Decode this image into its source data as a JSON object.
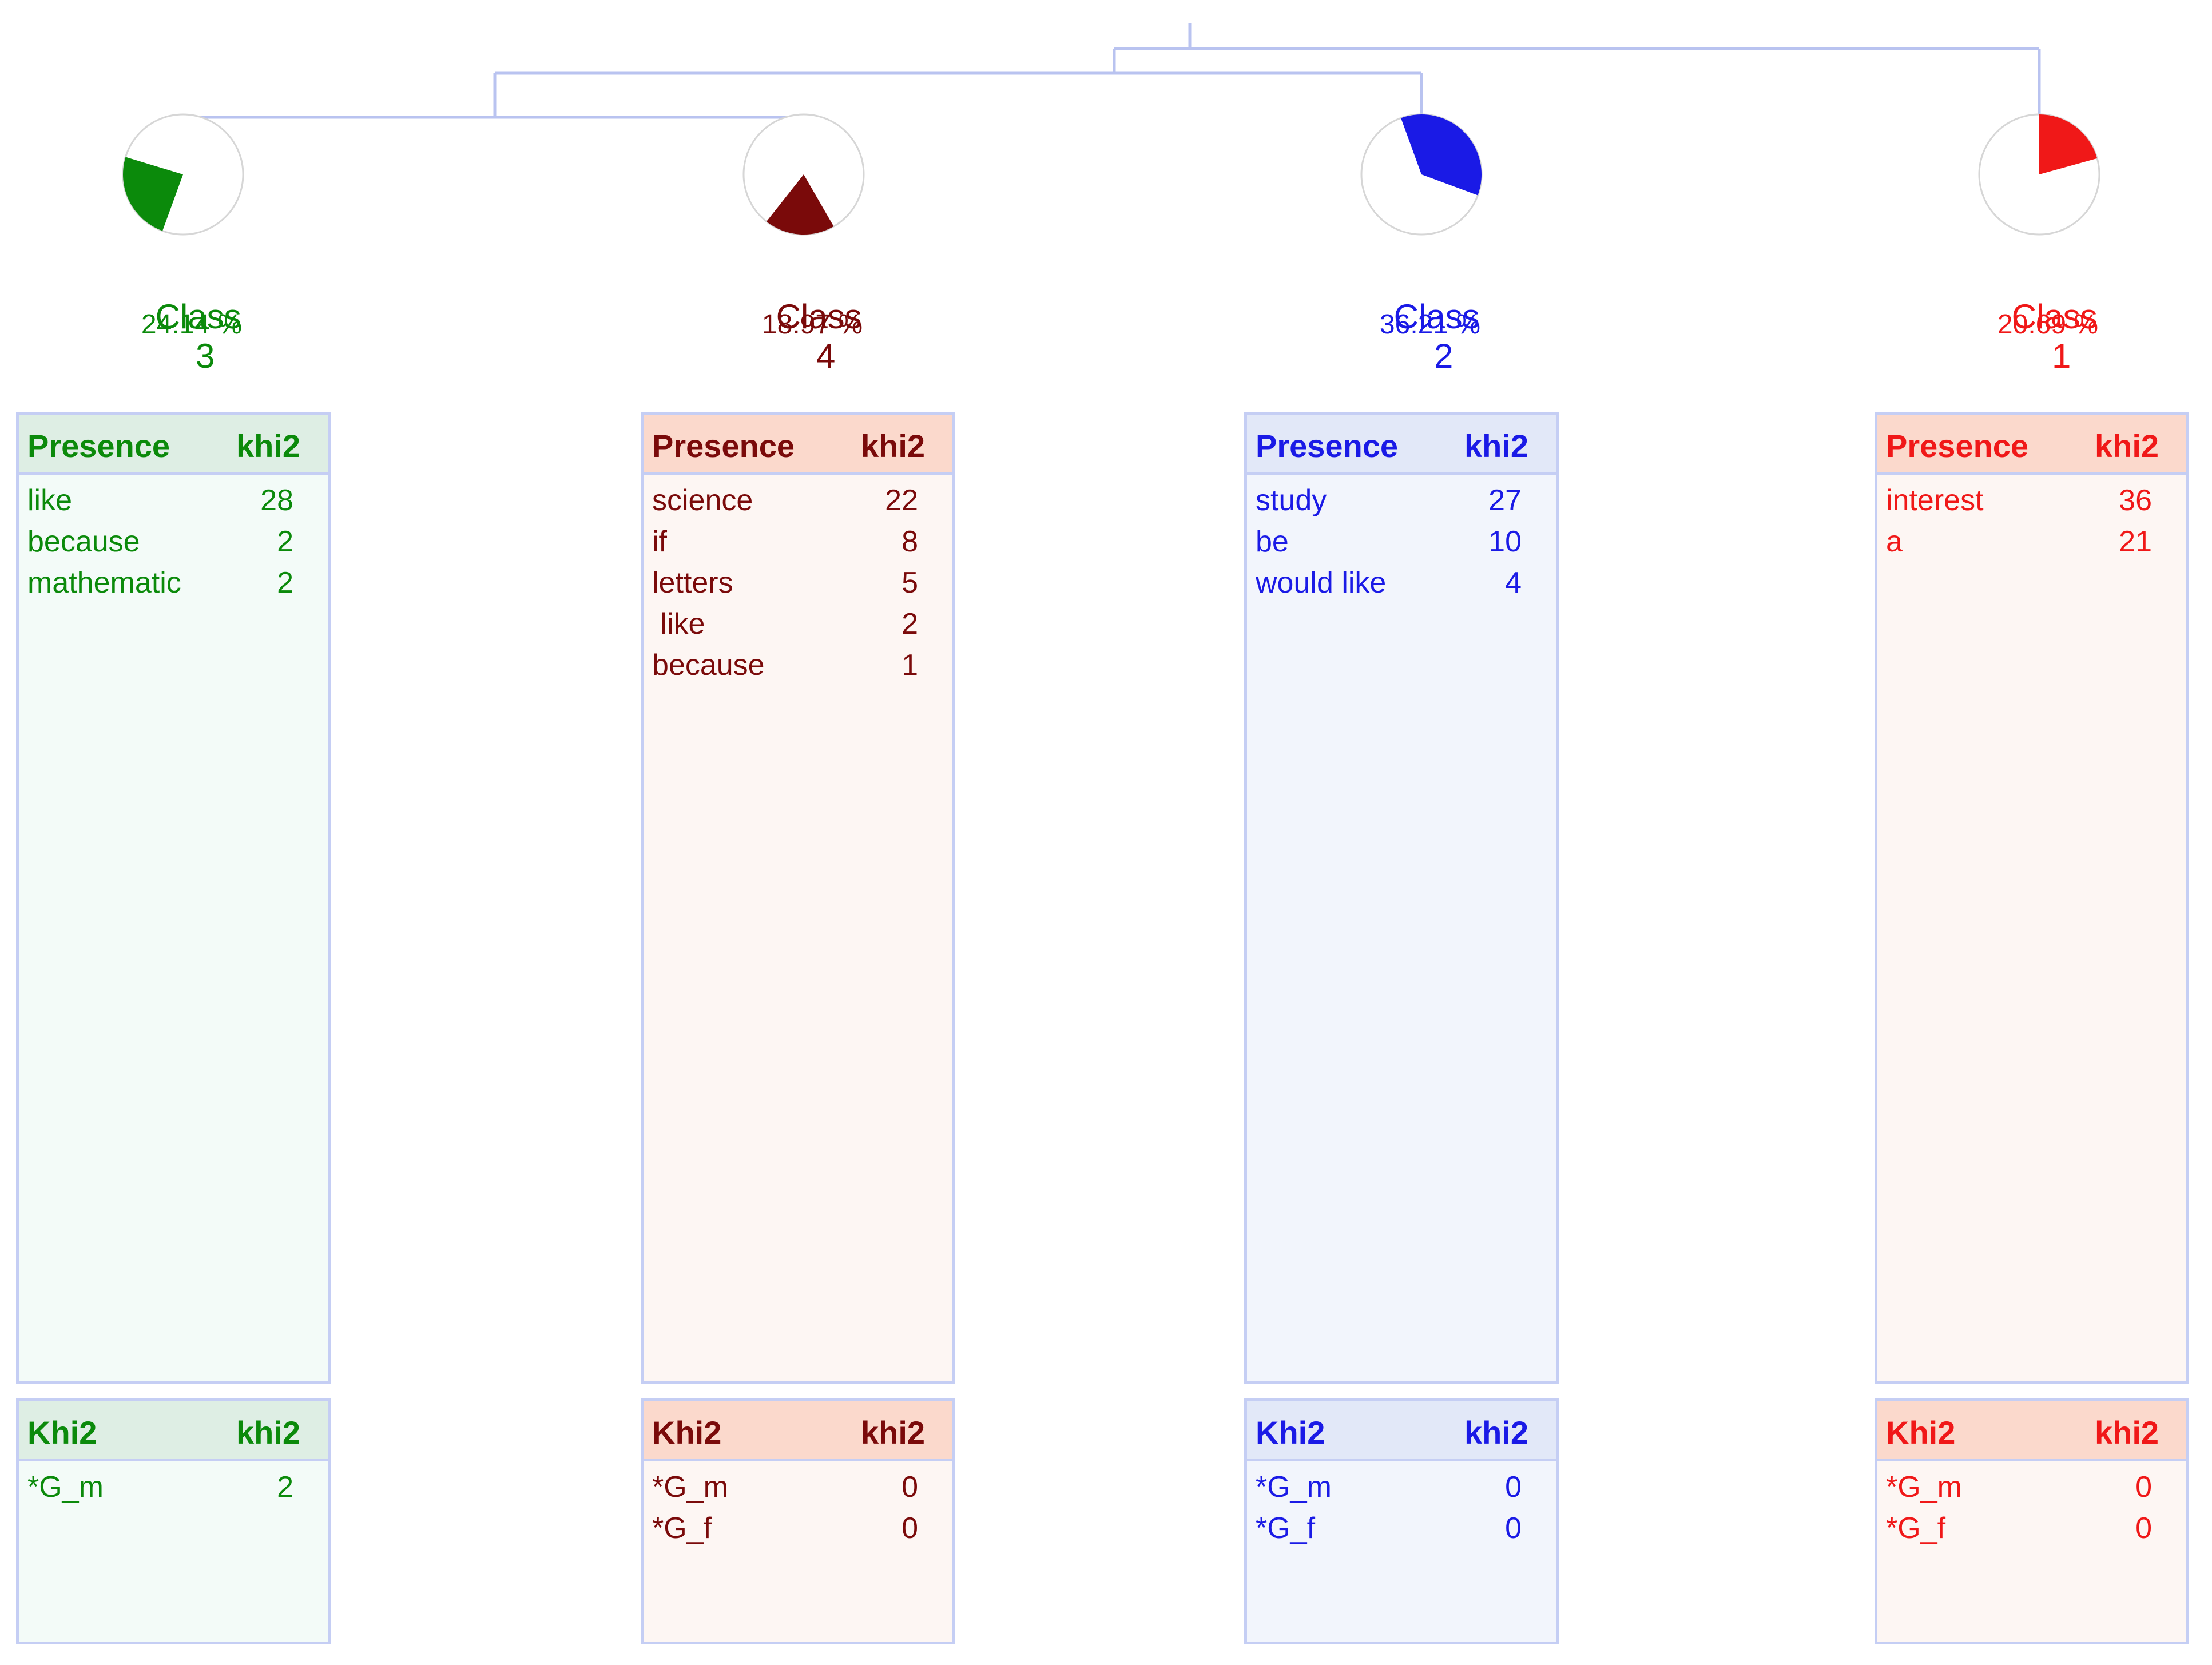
{
  "classes": [
    {
      "key": "c3",
      "class_word": "Class",
      "class_number": "3",
      "percent_label": "24.14 %",
      "percent": 24.14,
      "color": "#0b8a0b",
      "header_bg": "#deeee4",
      "body_bg": "#f3fbf8",
      "presence_header": "Presence",
      "presence_value_header": "khi2",
      "presence_rows": [
        {
          "word": "like",
          "value": "28"
        },
        {
          "word": "because",
          "value": "2"
        },
        {
          "word": "mathematic",
          "value": "2"
        }
      ],
      "khi_header": "Khi2",
      "khi_value_header": "khi2",
      "khi_rows": [
        {
          "word": "*G_m",
          "value": "2"
        }
      ]
    },
    {
      "key": "c4",
      "class_word": "Class",
      "class_number": "4",
      "percent_label": "18.97 %",
      "percent": 18.97,
      "color": "#7a0a0a",
      "header_bg": "#fbd9cc",
      "body_bg": "#fdf6f3",
      "presence_header": "Presence",
      "presence_value_header": "khi2",
      "presence_rows": [
        {
          "word": "science",
          "value": "22"
        },
        {
          "word": "if",
          "value": "8"
        },
        {
          "word": "letters",
          "value": "5"
        },
        {
          "word": " like",
          "value": "2"
        },
        {
          "word": "because",
          "value": "1"
        }
      ],
      "khi_header": "Khi2",
      "khi_value_header": "khi2",
      "khi_rows": [
        {
          "word": "*G_m",
          "value": "0"
        },
        {
          "word": "*G_f",
          "value": "0"
        }
      ]
    },
    {
      "key": "c2",
      "class_word": "Class",
      "class_number": "2",
      "percent_label": "36.21 %",
      "percent": 36.21,
      "color": "#1a1ae6",
      "header_bg": "#e2e8f8",
      "body_bg": "#f2f5fc",
      "presence_header": "Presence",
      "presence_value_header": "khi2",
      "presence_rows": [
        {
          "word": "study",
          "value": "27"
        },
        {
          "word": "be",
          "value": "10"
        },
        {
          "word": "would like",
          "value": "4"
        }
      ],
      "khi_header": "Khi2",
      "khi_value_header": "khi2",
      "khi_rows": [
        {
          "word": "*G_m",
          "value": "0"
        },
        {
          "word": "*G_f",
          "value": "0"
        }
      ]
    },
    {
      "key": "c1",
      "class_word": "Class",
      "class_number": "1",
      "percent_label": "20.69 %",
      "percent": 20.69,
      "color": "#f01818",
      "header_bg": "#fbd9cc",
      "body_bg": "#fdf6f3",
      "presence_header": "Presence",
      "presence_value_header": "khi2",
      "presence_rows": [
        {
          "word": "interest",
          "value": "36"
        },
        {
          "word": "a",
          "value": "21"
        }
      ],
      "khi_header": "Khi2",
      "khi_value_header": "khi2",
      "khi_rows": [
        {
          "word": "*G_m",
          "value": "0"
        },
        {
          "word": "*G_f",
          "value": "0"
        }
      ]
    }
  ],
  "line_color": "#b9c3f0"
}
